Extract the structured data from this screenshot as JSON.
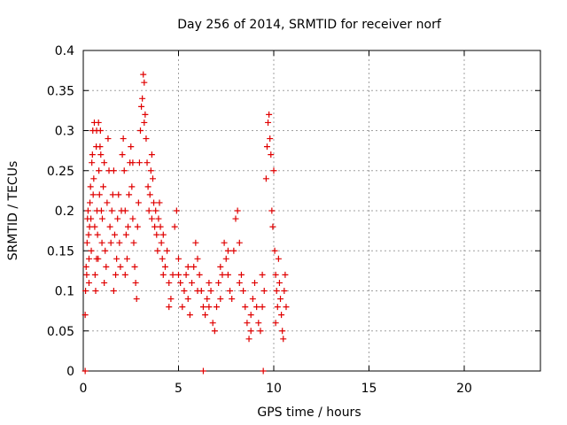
{
  "chart_data": {
    "type": "scatter",
    "title": "Day 256 of 2014, SRMTID for receiver norf",
    "xlabel": "GPS time / hours",
    "ylabel": "SRMTID / TECUs",
    "xlim": [
      0,
      24
    ],
    "ylim": [
      0,
      0.4
    ],
    "x_ticks": [
      0,
      5,
      10,
      15,
      20
    ],
    "x_tick_labels": [
      "0",
      "5",
      "10",
      "15",
      "20"
    ],
    "y_ticks": [
      0,
      0.05,
      0.1,
      0.15,
      0.2,
      0.25,
      0.3,
      0.35,
      0.4
    ],
    "y_tick_labels": [
      "0",
      "0.05",
      "0.1",
      "0.15",
      "0.2",
      "0.25",
      "0.3",
      "0.35",
      "0.4"
    ],
    "grid": true,
    "marker": "plus",
    "colors": {
      "series": "#e00000",
      "grid": "#a0a0a0",
      "axis": "#000000"
    },
    "series": [
      {
        "name": "SRMTID",
        "points": [
          [
            0.1,
            0.07
          ],
          [
            0.12,
            0.1
          ],
          [
            0.15,
            0.13
          ],
          [
            0.18,
            0.12
          ],
          [
            0.2,
            0.16
          ],
          [
            0.22,
            0.19
          ],
          [
            0.25,
            0.2
          ],
          [
            0.28,
            0.17
          ],
          [
            0.3,
            0.14
          ],
          [
            0.33,
            0.18
          ],
          [
            0.35,
            0.21
          ],
          [
            0.38,
            0.23
          ],
          [
            0.4,
            0.19
          ],
          [
            0.42,
            0.15
          ],
          [
            0.45,
            0.26
          ],
          [
            0.48,
            0.27
          ],
          [
            0.5,
            0.3
          ],
          [
            0.52,
            0.22
          ],
          [
            0.55,
            0.24
          ],
          [
            0.58,
            0.31
          ],
          [
            0.6,
            0.18
          ],
          [
            0.62,
            0.12
          ],
          [
            0.65,
            0.1
          ],
          [
            0.68,
            0.28
          ],
          [
            0.7,
            0.3
          ],
          [
            0.72,
            0.2
          ],
          [
            0.75,
            0.17
          ],
          [
            0.78,
            0.14
          ],
          [
            0.8,
            0.31
          ],
          [
            0.82,
            0.25
          ],
          [
            0.85,
            0.22
          ],
          [
            0.88,
            0.28
          ],
          [
            0.9,
            0.3
          ],
          [
            0.92,
            0.27
          ],
          [
            0.95,
            0.2
          ],
          [
            0.98,
            0.16
          ],
          [
            1.0,
            0.19
          ],
          [
            1.05,
            0.23
          ],
          [
            1.1,
            0.26
          ],
          [
            1.15,
            0.15
          ],
          [
            1.2,
            0.13
          ],
          [
            1.25,
            0.21
          ],
          [
            1.3,
            0.29
          ],
          [
            1.35,
            0.25
          ],
          [
            1.4,
            0.18
          ],
          [
            1.45,
            0.16
          ],
          [
            1.5,
            0.2
          ],
          [
            1.55,
            0.22
          ],
          [
            1.6,
            0.25
          ],
          [
            1.65,
            0.17
          ],
          [
            1.7,
            0.12
          ],
          [
            1.75,
            0.14
          ],
          [
            1.8,
            0.19
          ],
          [
            1.85,
            0.22
          ],
          [
            1.9,
            0.16
          ],
          [
            1.95,
            0.13
          ],
          [
            2.0,
            0.2
          ],
          [
            2.05,
            0.27
          ],
          [
            2.1,
            0.29
          ],
          [
            2.15,
            0.25
          ],
          [
            2.2,
            0.2
          ],
          [
            2.25,
            0.17
          ],
          [
            2.3,
            0.14
          ],
          [
            2.35,
            0.18
          ],
          [
            2.4,
            0.22
          ],
          [
            2.45,
            0.26
          ],
          [
            2.5,
            0.28
          ],
          [
            2.55,
            0.23
          ],
          [
            2.6,
            0.19
          ],
          [
            2.65,
            0.16
          ],
          [
            2.7,
            0.13
          ],
          [
            2.75,
            0.11
          ],
          [
            2.8,
            0.09
          ],
          [
            2.85,
            0.18
          ],
          [
            2.9,
            0.21
          ],
          [
            2.95,
            0.26
          ],
          [
            3.0,
            0.3
          ],
          [
            3.05,
            0.33
          ],
          [
            3.1,
            0.34
          ],
          [
            3.15,
            0.37
          ],
          [
            3.2,
            0.36
          ],
          [
            3.25,
            0.32
          ],
          [
            3.3,
            0.29
          ],
          [
            3.35,
            0.26
          ],
          [
            3.4,
            0.23
          ],
          [
            3.45,
            0.2
          ],
          [
            3.5,
            0.22
          ],
          [
            3.55,
            0.25
          ],
          [
            3.6,
            0.27
          ],
          [
            3.65,
            0.24
          ],
          [
            3.7,
            0.21
          ],
          [
            3.75,
            0.18
          ],
          [
            3.8,
            0.2
          ],
          [
            3.85,
            0.17
          ],
          [
            3.9,
            0.15
          ],
          [
            3.95,
            0.19
          ],
          [
            4.0,
            0.21
          ],
          [
            4.05,
            0.18
          ],
          [
            4.1,
            0.16
          ],
          [
            4.15,
            0.14
          ],
          [
            4.2,
            0.12
          ],
          [
            4.3,
            0.13
          ],
          [
            4.4,
            0.15
          ],
          [
            4.5,
            0.11
          ],
          [
            4.6,
            0.09
          ],
          [
            4.7,
            0.12
          ],
          [
            4.8,
            0.18
          ],
          [
            4.9,
            0.2
          ],
          [
            5.0,
            0.14
          ],
          [
            5.1,
            0.11
          ],
          [
            5.2,
            0.08
          ],
          [
            5.3,
            0.1
          ],
          [
            5.4,
            0.12
          ],
          [
            5.5,
            0.09
          ],
          [
            5.6,
            0.07
          ],
          [
            5.7,
            0.11
          ],
          [
            5.8,
            0.13
          ],
          [
            5.9,
            0.16
          ],
          [
            6.0,
            0.14
          ],
          [
            6.1,
            0.12
          ],
          [
            6.2,
            0.1
          ],
          [
            6.3,
            0.08
          ],
          [
            6.4,
            0.07
          ],
          [
            6.5,
            0.09
          ],
          [
            6.6,
            0.11
          ],
          [
            6.7,
            0.1
          ],
          [
            6.8,
            0.06
          ],
          [
            6.9,
            0.05
          ],
          [
            7.0,
            0.08
          ],
          [
            7.1,
            0.11
          ],
          [
            7.2,
            0.13
          ],
          [
            7.3,
            0.12
          ],
          [
            7.4,
            0.16
          ],
          [
            7.5,
            0.14
          ],
          [
            7.6,
            0.12
          ],
          [
            7.7,
            0.1
          ],
          [
            7.8,
            0.09
          ],
          [
            7.9,
            0.15
          ],
          [
            8.0,
            0.19
          ],
          [
            8.1,
            0.2
          ],
          [
            8.2,
            0.16
          ],
          [
            8.3,
            0.12
          ],
          [
            8.4,
            0.1
          ],
          [
            8.5,
            0.08
          ],
          [
            8.6,
            0.06
          ],
          [
            8.7,
            0.04
          ],
          [
            8.8,
            0.07
          ],
          [
            8.9,
            0.09
          ],
          [
            9.0,
            0.11
          ],
          [
            9.1,
            0.08
          ],
          [
            9.2,
            0.06
          ],
          [
            9.3,
            0.05
          ],
          [
            9.4,
            0.08
          ],
          [
            9.5,
            0.1
          ],
          [
            9.6,
            0.24
          ],
          [
            9.65,
            0.28
          ],
          [
            9.7,
            0.31
          ],
          [
            9.75,
            0.32
          ],
          [
            9.8,
            0.29
          ],
          [
            9.85,
            0.27
          ],
          [
            9.9,
            0.2
          ],
          [
            9.95,
            0.18
          ],
          [
            10.0,
            0.25
          ],
          [
            10.05,
            0.15
          ],
          [
            10.1,
            0.12
          ],
          [
            10.15,
            0.1
          ],
          [
            10.2,
            0.08
          ],
          [
            10.25,
            0.14
          ],
          [
            10.3,
            0.11
          ],
          [
            10.35,
            0.09
          ],
          [
            10.4,
            0.07
          ],
          [
            10.45,
            0.05
          ],
          [
            10.5,
            0.04
          ],
          [
            10.55,
            0.1
          ],
          [
            10.6,
            0.12
          ],
          [
            10.65,
            0.08
          ],
          [
            0.3,
            0.11
          ],
          [
            0.7,
            0.14
          ],
          [
            1.1,
            0.11
          ],
          [
            1.6,
            0.1
          ],
          [
            2.2,
            0.12
          ],
          [
            2.6,
            0.26
          ],
          [
            3.2,
            0.31
          ],
          [
            3.6,
            0.19
          ],
          [
            4.2,
            0.17
          ],
          [
            4.5,
            0.08
          ],
          [
            5.0,
            0.12
          ],
          [
            5.5,
            0.13
          ],
          [
            6.0,
            0.1
          ],
          [
            6.6,
            0.08
          ],
          [
            7.2,
            0.09
          ],
          [
            7.6,
            0.15
          ],
          [
            8.2,
            0.11
          ],
          [
            8.8,
            0.05
          ],
          [
            9.4,
            0.12
          ],
          [
            10.1,
            0.06
          ],
          [
            0.1,
            0.0
          ],
          [
            6.3,
            0.0
          ],
          [
            9.45,
            0.0
          ]
        ]
      }
    ]
  }
}
